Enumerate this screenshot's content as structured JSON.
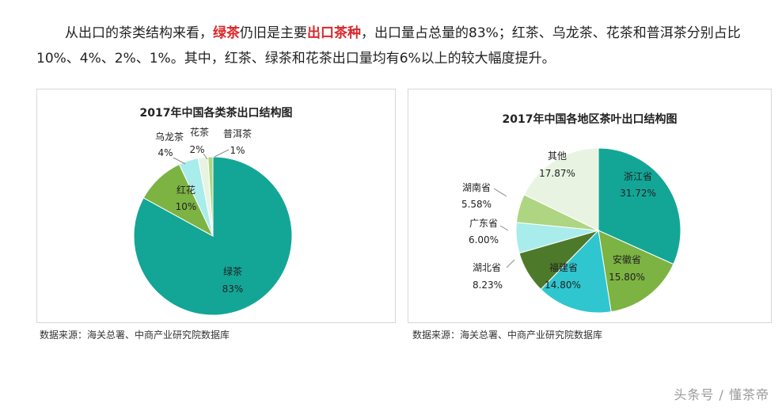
{
  "article": {
    "seg1": "从出口的茶类结构来看，",
    "seg2": "绿茶",
    "seg3": "仍旧是主要",
    "seg4": "出口茶种",
    "seg5": "，出口量占总量的83%；红茶、乌龙茶、花茶和普洱茶分别占比10%、4%、2%、1%。其中，红茶、绿茶和花茶出口量均有6%以上的较大幅度提升。"
  },
  "colors": {
    "highlight": "#d9282c",
    "teal": "#13a697",
    "green": "#7cb342",
    "cyan": "#2fc6d0",
    "dark_green": "#4d7a2a",
    "light_cyan": "#a9ecec",
    "light_green": "#aed581",
    "pale": "#e8f4e1"
  },
  "chart_data": [
    {
      "type": "pie",
      "title": "2017年中国各类茶出口结构图",
      "categories": [
        "绿茶",
        "红花",
        "乌龙茶",
        "花茶",
        "普洱茶"
      ],
      "values": [
        83,
        10,
        4,
        2,
        1
      ],
      "value_labels": [
        "83%",
        "10%",
        "4%",
        "2%",
        "1%"
      ],
      "colors": [
        "#13a697",
        "#7cb342",
        "#a9ecec",
        "#e8f4e1",
        "#aed581"
      ]
    },
    {
      "type": "pie",
      "title": "2017年中国各地区茶叶出口结构图",
      "categories": [
        "浙江省",
        "安徽省",
        "福建省",
        "湖北省",
        "广东省",
        "湖南省",
        "其他"
      ],
      "values": [
        31.72,
        15.8,
        14.8,
        8.23,
        6.0,
        5.58,
        17.87
      ],
      "value_labels": [
        "31.72%",
        "15.80%",
        "14.80%",
        "8.23%",
        "6.00%",
        "5.58%",
        "17.87%"
      ],
      "colors": [
        "#13a697",
        "#7cb342",
        "#2fc6d0",
        "#4d7a2a",
        "#a9ecec",
        "#aed581",
        "#e8f4e1"
      ]
    }
  ],
  "source_left": "数据来源：海关总署、中商产业研究院数据库",
  "source_right": "数据来源：海关总署、中商产业研究院数据库",
  "watermark": "头条号 / 懂茶帝"
}
